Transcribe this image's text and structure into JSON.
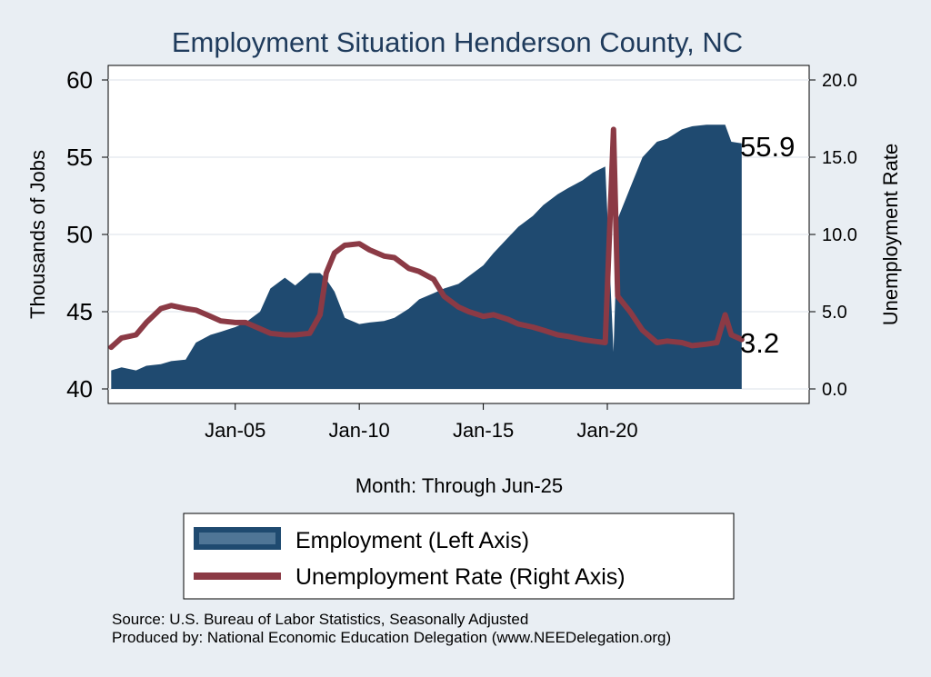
{
  "chart_data": {
    "type": "area",
    "title": "Employment Situation Henderson  County, NC",
    "xlabel": "Month: Through Jun-25",
    "ylabel_left": "Thousands of Jobs",
    "ylabel_right": "Unemployment Rate",
    "ylim_left": [
      40,
      60
    ],
    "ylim_right": [
      0,
      20
    ],
    "yticks_left": [
      "40",
      "45",
      "50",
      "55",
      "60"
    ],
    "yticks_right": [
      "0.0",
      "5.0",
      "10.0",
      "15.0",
      "20.0"
    ],
    "xticks": [
      "Jan-05",
      "Jan-10",
      "Jan-15",
      "Jan-20"
    ],
    "grid": true,
    "legend_position": "bottom",
    "end_labels": {
      "employment": "55.9",
      "unemployment": "3.2"
    },
    "colors": {
      "employment": "#1f4a70",
      "unemployment": "#8b3a45",
      "background": "#e9eef3",
      "plot_background": "#ffffff"
    },
    "series": [
      {
        "name": "Employment (Left Axis)",
        "axis": "left",
        "x": [
          "2000-01",
          "2000-06",
          "2001-01",
          "2001-06",
          "2002-01",
          "2002-06",
          "2003-01",
          "2003-06",
          "2004-01",
          "2004-06",
          "2005-01",
          "2005-06",
          "2006-01",
          "2006-06",
          "2007-01",
          "2007-06",
          "2008-01",
          "2008-06",
          "2008-09",
          "2009-01",
          "2009-06",
          "2010-01",
          "2010-06",
          "2011-01",
          "2011-06",
          "2012-01",
          "2012-06",
          "2013-01",
          "2013-06",
          "2014-01",
          "2014-06",
          "2015-01",
          "2015-06",
          "2016-01",
          "2016-06",
          "2017-01",
          "2017-06",
          "2018-01",
          "2018-06",
          "2019-01",
          "2019-06",
          "2019-12",
          "2020-04",
          "2020-06",
          "2020-12",
          "2021-06",
          "2022-01",
          "2022-06",
          "2023-01",
          "2023-06",
          "2024-01",
          "2024-06",
          "2024-10",
          "2025-01",
          "2025-06"
        ],
        "values": [
          41.2,
          41.4,
          41.2,
          41.5,
          41.6,
          41.8,
          41.9,
          43.0,
          43.5,
          43.7,
          44.0,
          44.3,
          45.0,
          46.5,
          47.2,
          46.7,
          47.5,
          47.5,
          47.1,
          46.3,
          44.6,
          44.2,
          44.3,
          44.4,
          44.6,
          45.2,
          45.8,
          46.2,
          46.5,
          46.8,
          47.3,
          48.0,
          48.8,
          49.8,
          50.5,
          51.2,
          51.9,
          52.6,
          53.0,
          53.5,
          54.0,
          54.4,
          42.4,
          51.0,
          53.0,
          55.0,
          56.0,
          56.2,
          56.8,
          57.0,
          57.1,
          57.1,
          57.1,
          56.0,
          55.9
        ]
      },
      {
        "name": "Unemployment Rate (Right Axis)",
        "axis": "right",
        "x": [
          "2000-01",
          "2000-06",
          "2001-01",
          "2001-06",
          "2002-01",
          "2002-06",
          "2003-01",
          "2003-06",
          "2004-01",
          "2004-06",
          "2005-01",
          "2005-06",
          "2006-01",
          "2006-06",
          "2007-01",
          "2007-06",
          "2008-01",
          "2008-06",
          "2008-09",
          "2009-01",
          "2009-06",
          "2010-01",
          "2010-06",
          "2011-01",
          "2011-06",
          "2012-01",
          "2012-06",
          "2013-01",
          "2013-06",
          "2014-01",
          "2014-06",
          "2015-01",
          "2015-06",
          "2016-01",
          "2016-06",
          "2017-01",
          "2017-06",
          "2018-01",
          "2018-06",
          "2019-01",
          "2019-06",
          "2019-12",
          "2020-04",
          "2020-06",
          "2020-12",
          "2021-06",
          "2022-01",
          "2022-06",
          "2023-01",
          "2023-06",
          "2024-01",
          "2024-06",
          "2024-10",
          "2025-01",
          "2025-06"
        ],
        "values": [
          2.7,
          3.3,
          3.5,
          4.3,
          5.2,
          5.4,
          5.2,
          5.1,
          4.7,
          4.4,
          4.3,
          4.3,
          3.9,
          3.6,
          3.5,
          3.5,
          3.6,
          4.8,
          7.5,
          8.8,
          9.3,
          9.4,
          9.0,
          8.6,
          8.5,
          7.8,
          7.6,
          7.1,
          6.0,
          5.3,
          5.0,
          4.7,
          4.8,
          4.5,
          4.2,
          4.0,
          3.8,
          3.5,
          3.4,
          3.2,
          3.1,
          3.0,
          16.8,
          6.0,
          5.0,
          3.8,
          3.0,
          3.1,
          3.0,
          2.8,
          2.9,
          3.0,
          4.8,
          3.5,
          3.2
        ]
      }
    ]
  },
  "footer": {
    "source": "Source: U.S. Bureau of Labor Statistics, Seasonally Adjusted",
    "producer": "Produced by: National Economic Education Delegation (www.NEEDelegation.org)"
  }
}
